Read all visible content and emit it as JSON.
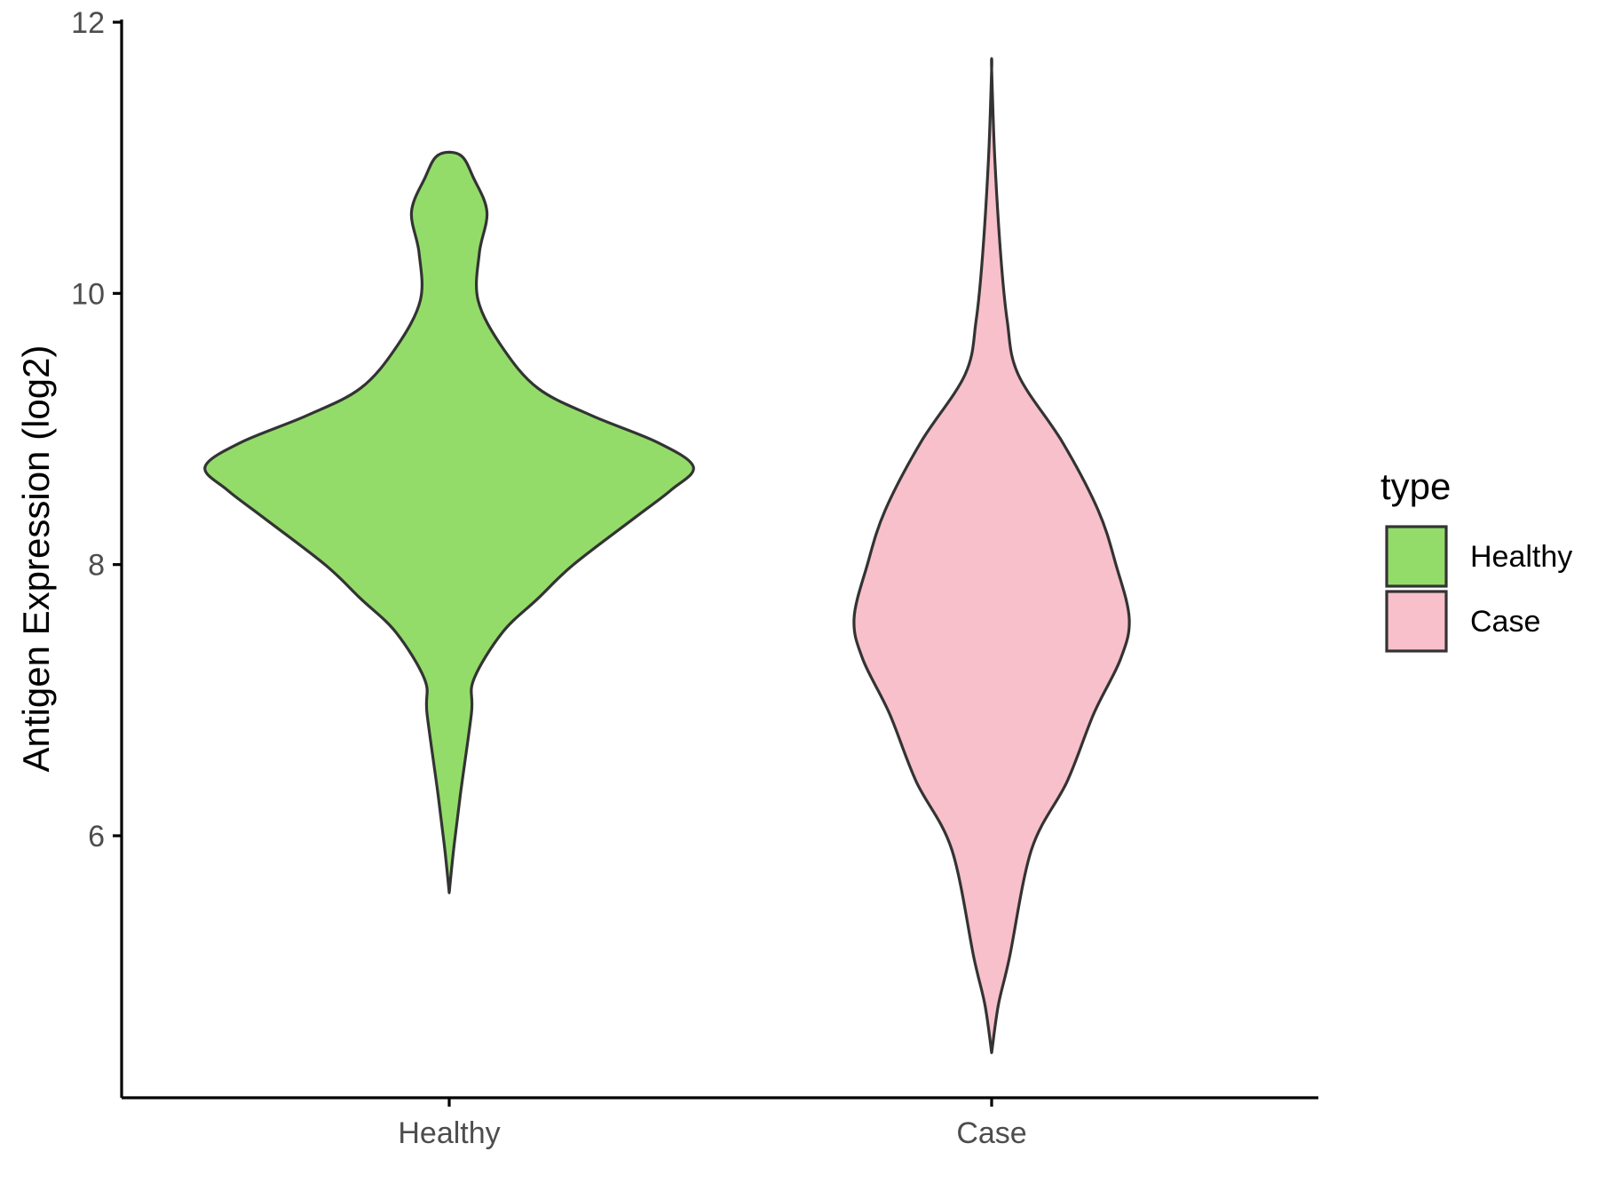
{
  "chart_data": {
    "type": "violin",
    "ylabel": "Antigen Expression (log2)",
    "xlabel": "",
    "ylim": [
      4.2,
      12
    ],
    "yticks": [
      6,
      8,
      10,
      12
    ],
    "categories": [
      "Healthy",
      "Case"
    ],
    "grid": false,
    "legend": {
      "title": "type",
      "position": "right",
      "entries": [
        {
          "label": "Healthy",
          "color": "#93dc6a"
        },
        {
          "label": "Case",
          "color": "#f7c0cb"
        }
      ]
    },
    "series": [
      {
        "name": "Healthy",
        "color": "#93dc6a",
        "min": 5.58,
        "max": 11.02,
        "density": [
          [
            5.58,
            0.0
          ],
          [
            5.9,
            0.01
          ],
          [
            6.3,
            0.025
          ],
          [
            6.9,
            0.05
          ],
          [
            7.15,
            0.055
          ],
          [
            7.5,
            0.12
          ],
          [
            7.75,
            0.2
          ],
          [
            8.0,
            0.28
          ],
          [
            8.35,
            0.42
          ],
          [
            8.55,
            0.5
          ],
          [
            8.72,
            0.55
          ],
          [
            8.9,
            0.47
          ],
          [
            9.1,
            0.32
          ],
          [
            9.3,
            0.2
          ],
          [
            9.6,
            0.12
          ],
          [
            9.95,
            0.065
          ],
          [
            10.3,
            0.068
          ],
          [
            10.6,
            0.085
          ],
          [
            10.85,
            0.055
          ],
          [
            11.02,
            0.025
          ]
        ]
      },
      {
        "name": "Case",
        "color": "#f7c0cb",
        "min": 4.4,
        "max": 11.65,
        "density": [
          [
            4.4,
            0.0
          ],
          [
            4.75,
            0.015
          ],
          [
            5.1,
            0.04
          ],
          [
            5.9,
            0.09
          ],
          [
            6.4,
            0.17
          ],
          [
            6.9,
            0.23
          ],
          [
            7.3,
            0.29
          ],
          [
            7.6,
            0.31
          ],
          [
            8.0,
            0.28
          ],
          [
            8.4,
            0.24
          ],
          [
            8.9,
            0.16
          ],
          [
            9.4,
            0.06
          ],
          [
            9.8,
            0.035
          ],
          [
            10.3,
            0.02
          ],
          [
            11.0,
            0.007
          ],
          [
            11.65,
            0.0
          ]
        ]
      }
    ]
  }
}
